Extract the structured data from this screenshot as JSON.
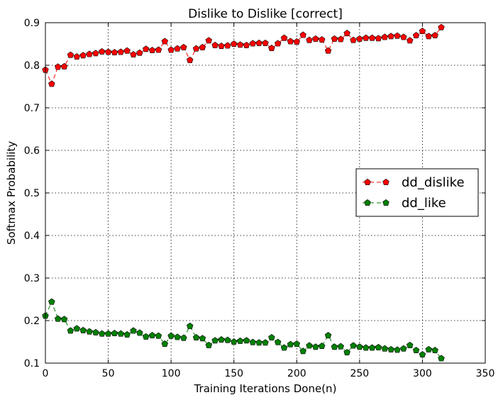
{
  "chart_data": {
    "type": "line",
    "title": "Dislike to Dislike [correct]",
    "xlabel": "Training Iterations Done(n)",
    "ylabel": "Softmax Probability",
    "xlim": [
      0,
      350
    ],
    "ylim": [
      0.1,
      0.9
    ],
    "xticks": [
      "0",
      "50",
      "100",
      "150",
      "200",
      "250",
      "300",
      "350"
    ],
    "yticks": [
      "0.1",
      "0.2",
      "0.3",
      "0.4",
      "0.5",
      "0.6",
      "0.7",
      "0.8",
      "0.9"
    ],
    "grid": true,
    "legend_position": "center-right",
    "x": [
      0,
      5,
      10,
      15,
      20,
      25,
      30,
      35,
      40,
      45,
      50,
      55,
      60,
      65,
      70,
      75,
      80,
      85,
      90,
      95,
      100,
      105,
      110,
      115,
      120,
      125,
      130,
      135,
      140,
      145,
      150,
      155,
      160,
      165,
      170,
      175,
      180,
      185,
      190,
      195,
      200,
      205,
      210,
      215,
      220,
      225,
      230,
      235,
      240,
      245,
      250,
      255,
      260,
      265,
      270,
      275,
      280,
      285,
      290,
      295,
      300,
      305,
      310,
      315
    ],
    "series": [
      {
        "name": "dd_dislike",
        "color": "#ff0000",
        "values": [
          0.789,
          0.756,
          0.796,
          0.797,
          0.824,
          0.82,
          0.823,
          0.826,
          0.828,
          0.832,
          0.831,
          0.83,
          0.831,
          0.834,
          0.825,
          0.829,
          0.838,
          0.835,
          0.836,
          0.856,
          0.836,
          0.839,
          0.842,
          0.812,
          0.839,
          0.842,
          0.858,
          0.847,
          0.845,
          0.846,
          0.85,
          0.848,
          0.847,
          0.851,
          0.852,
          0.852,
          0.84,
          0.851,
          0.864,
          0.856,
          0.855,
          0.871,
          0.859,
          0.862,
          0.86,
          0.834,
          0.862,
          0.861,
          0.875,
          0.859,
          0.862,
          0.864,
          0.864,
          0.863,
          0.866,
          0.868,
          0.869,
          0.866,
          0.858,
          0.87,
          0.88,
          0.868,
          0.87,
          0.889
        ]
      },
      {
        "name": "dd_like",
        "color": "#008000",
        "values": [
          0.211,
          0.244,
          0.204,
          0.203,
          0.176,
          0.181,
          0.177,
          0.174,
          0.172,
          0.169,
          0.169,
          0.17,
          0.169,
          0.167,
          0.176,
          0.171,
          0.162,
          0.165,
          0.164,
          0.145,
          0.164,
          0.161,
          0.159,
          0.187,
          0.16,
          0.158,
          0.142,
          0.153,
          0.155,
          0.154,
          0.15,
          0.152,
          0.153,
          0.149,
          0.148,
          0.148,
          0.16,
          0.149,
          0.136,
          0.144,
          0.145,
          0.128,
          0.141,
          0.138,
          0.14,
          0.165,
          0.138,
          0.139,
          0.125,
          0.141,
          0.138,
          0.136,
          0.136,
          0.137,
          0.134,
          0.132,
          0.131,
          0.134,
          0.142,
          0.13,
          0.12,
          0.132,
          0.13,
          0.111
        ]
      }
    ]
  }
}
